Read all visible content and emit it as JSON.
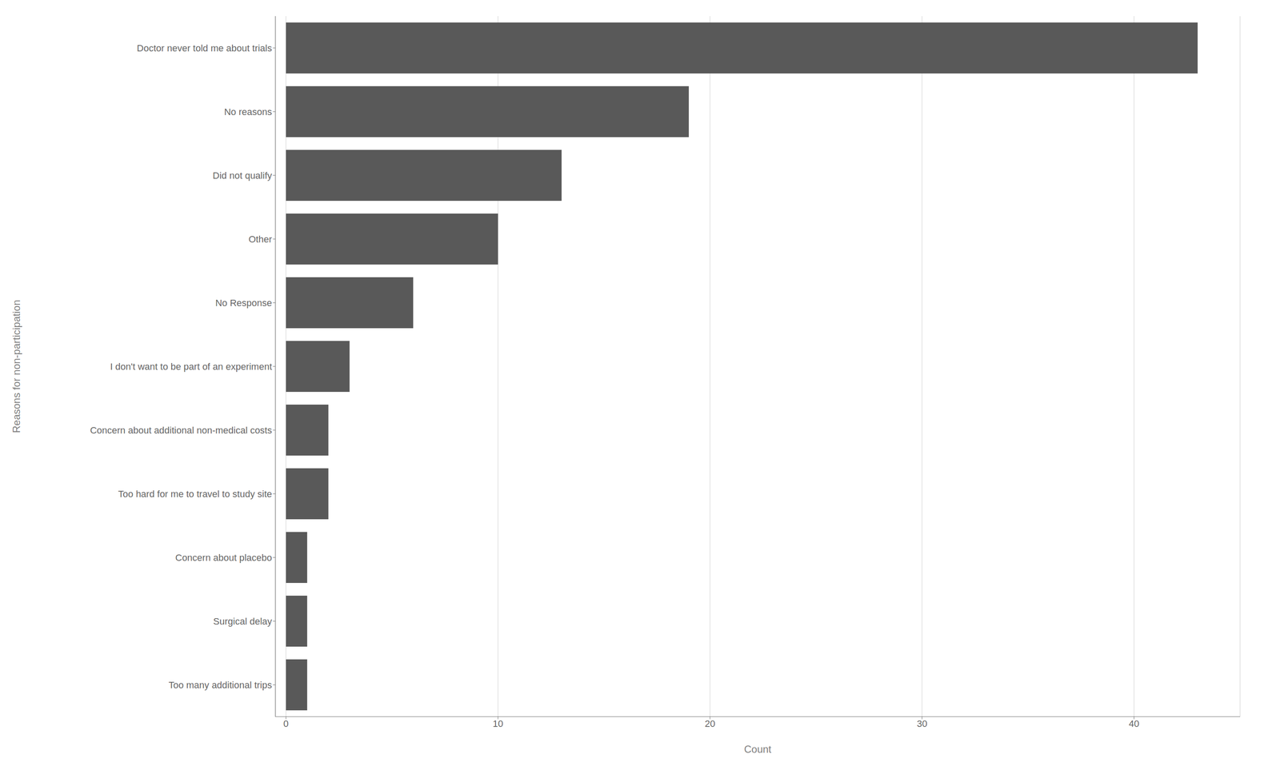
{
  "chart_data": {
    "type": "bar",
    "orientation": "horizontal",
    "categories": [
      "Doctor never told me about trials",
      "No reasons",
      "Did not qualify",
      "Other",
      "No Response",
      "I don't want to be part of an experiment",
      "Concern about additional non-medical costs",
      "Too hard for me to travel to study site",
      "Concern about placebo",
      "Surgical delay",
      "Too many additional trips"
    ],
    "values": [
      43,
      19,
      13,
      10,
      6,
      3,
      2,
      2,
      1,
      1,
      1
    ],
    "color": "#595959",
    "xlabel": "Count",
    "ylabel": "Reasons for non-participation",
    "xlim": [
      -0.5,
      45
    ],
    "xticks": [
      0,
      10,
      20,
      30,
      40
    ],
    "grid": true
  }
}
